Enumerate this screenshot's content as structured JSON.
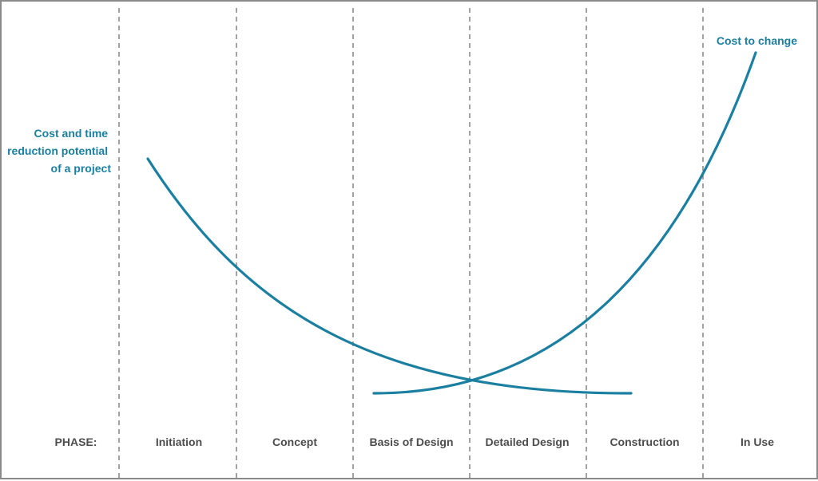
{
  "colors": {
    "accent": "#1a7fa0",
    "divider": "#8c8c8c",
    "phase_text": "#4d4d4d"
  },
  "labels": {
    "cost_reduction": [
      "Cost and time",
      "reduction potential",
      "of a project"
    ],
    "cost_to_change": "Cost to change"
  },
  "phase_header": "PHASE:",
  "phases": [
    "Initiation",
    "Concept",
    "Basis of Design",
    "Detailed Design",
    "Construction",
    "In Use"
  ]
}
